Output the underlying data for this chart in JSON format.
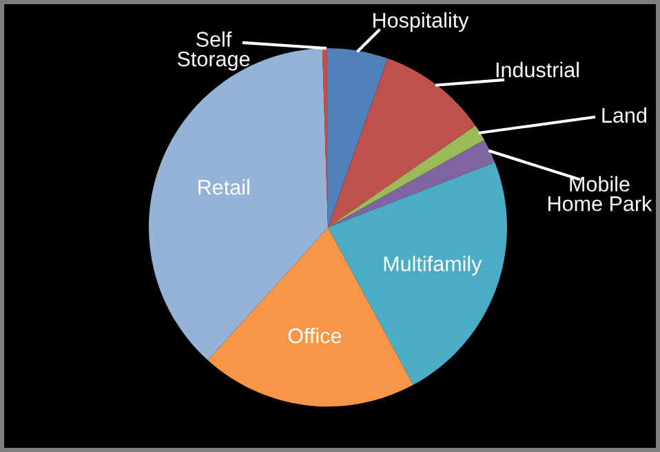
{
  "chart_data": {
    "type": "pie",
    "categories": [
      "Hospitality",
      "Industrial",
      "Land",
      "Mobile\nHome Park",
      "Multifamily",
      "Office",
      "Retail",
      "Self\nStorage"
    ],
    "values": [
      5.4,
      10,
      1.5,
      2.2,
      23,
      19.6,
      37.8,
      0.5
    ],
    "colors": [
      "#4f81bd",
      "#c0504d",
      "#9bbb59",
      "#8064a2",
      "#4bacc6",
      "#f79646",
      "#95b3d7",
      "#c0504d"
    ]
  }
}
